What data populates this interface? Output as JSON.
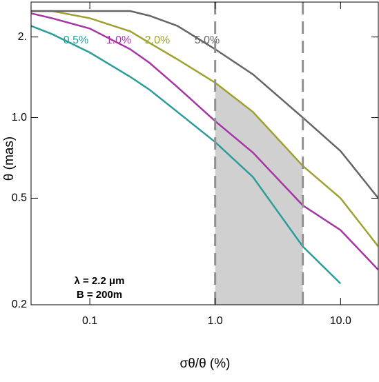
{
  "chart_data": {
    "type": "line",
    "x_label": "σθ/θ (%)",
    "y_label": "θ (mas)",
    "x": [
      0.034,
      0.05,
      0.1,
      0.21,
      0.3,
      0.5,
      1,
      2,
      5,
      10,
      20
    ],
    "series": [
      {
        "name": "0.5%",
        "color": "#2a9d9a",
        "values": [
          2.2,
          2.05,
          1.75,
          1.42,
          1.27,
          1.05,
          0.81,
          0.6,
          0.33,
          0.24,
          null
        ]
      },
      {
        "name": "1.0%",
        "color": "#a535a5",
        "values": [
          2.45,
          2.35,
          2.15,
          1.8,
          1.6,
          1.3,
          0.97,
          0.74,
          0.47,
          0.38,
          0.27
        ]
      },
      {
        "name": "2.0%",
        "color": "#a0a030",
        "values": [
          2.5,
          2.5,
          2.35,
          2.1,
          1.9,
          1.65,
          1.35,
          1.05,
          0.66,
          0.5,
          0.33
        ]
      },
      {
        "name": "5.0%",
        "color": "#646464",
        "values": [
          2.5,
          2.5,
          2.5,
          2.5,
          2.4,
          2.2,
          1.8,
          1.45,
          1.0,
          0.75,
          0.5
        ]
      }
    ],
    "shaded_region": [
      1,
      5
    ],
    "annotations": [
      "λ = 2.2 μm",
      "B = 200m"
    ],
    "log_x": true,
    "log_y": true,
    "xlim": [
      0.034,
      20
    ],
    "ylim": [
      0.2,
      2.7
    ],
    "xticks": [
      0.1,
      {
        "value": 1,
        "label": "1.0"
      },
      {
        "value": 10,
        "label": "10.0"
      }
    ],
    "yticks": [
      0.2,
      0.5,
      {
        "value": 1,
        "label": "1.0"
      },
      {
        "value": 2,
        "label": "2."
      }
    ]
  }
}
